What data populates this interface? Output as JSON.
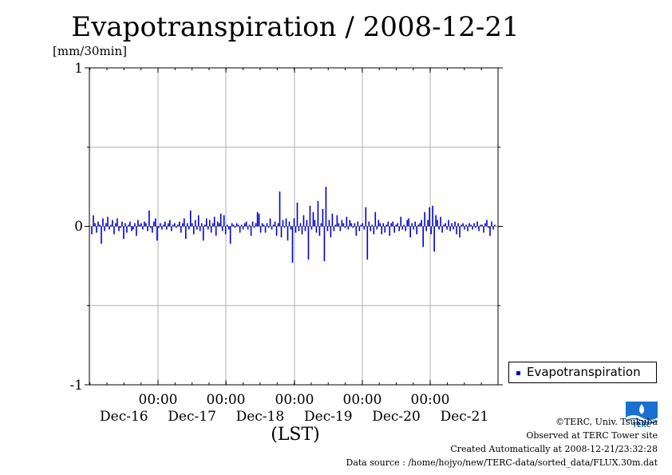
{
  "title": "Evapotranspiration / 2008-12-21",
  "chart_data": {
    "type": "bar",
    "title": "Evapotranspiration / 2008-12-21",
    "ylabel": "[mm/30min]",
    "xlabel": "(LST)",
    "ylim": [
      -1,
      1
    ],
    "yticks": [
      "1",
      "0",
      "-1"
    ],
    "xtick_times": [
      "00:00",
      "00:00",
      "00:00",
      "00:00",
      "00:00"
    ],
    "xtick_dates": [
      "Dec-16",
      "Dec-17",
      "Dec-18",
      "Dec-19",
      "Dec-20",
      "Dec-21"
    ],
    "grid": true,
    "legend_position": "bottom-right, outside plot",
    "series": [
      {
        "name": "Evapotranspiration",
        "color": "#0000cc",
        "values": [
          -0.05,
          0.07,
          0.02,
          -0.04,
          0.03,
          0.01,
          -0.11,
          0.05,
          -0.03,
          0.02,
          0.06,
          -0.02,
          0.01,
          0.04,
          -0.05,
          0.02,
          0.05,
          -0.03,
          -0.01,
          0.03,
          -0.08,
          0.02,
          -0.04,
          0.01,
          0.03,
          -0.03,
          -0.02,
          0.02,
          -0.06,
          0.04,
          0.01,
          0.02,
          -0.02,
          0.03,
          0.02,
          -0.03,
          0.1,
          -0.01,
          -0.04,
          0.03,
          0.05,
          -0.09,
          -0.01,
          0.02,
          -0.02,
          0.01,
          0.03,
          -0.02,
          0.02,
          0.04,
          -0.03,
          0.01,
          0.02,
          -0.01,
          0.01,
          0.03,
          -0.04,
          0.02,
          0.05,
          -0.08,
          0.02,
          -0.02,
          0.1,
          0.02,
          -0.05,
          0.04,
          -0.02,
          0.07,
          -0.03,
          0.02,
          -0.09,
          0.01,
          0.05,
          -0.02,
          0.04,
          -0.04,
          0.02,
          0.06,
          -0.06,
          0.03,
          0.02,
          0.08,
          -0.03,
          0.07,
          -0.05,
          0.01,
          -0.02,
          -0.11,
          0.02,
          0.01,
          -0.01,
          0.02,
          0.01,
          -0.04,
          0.01,
          -0.02,
          0.02,
          0.03,
          -0.02,
          0.01,
          -0.06,
          0.03,
          -0.01,
          0.02,
          0.09,
          0.08,
          -0.04,
          0.02,
          0.01,
          -0.04,
          0.02,
          -0.01,
          0.05,
          -0.02,
          0.01,
          0.03,
          -0.06,
          0.02,
          0.22,
          -0.07,
          0.04,
          -0.01,
          0.05,
          -0.09,
          0.03,
          -0.02,
          -0.23,
          0.05,
          -0.04,
          0.15,
          -0.03,
          0.02,
          -0.05,
          0.07,
          -0.03,
          0.04,
          -0.21,
          0.13,
          -0.02,
          0.09,
          0.04,
          -0.04,
          0.16,
          -0.06,
          0.02,
          0.11,
          -0.22,
          0.25,
          -0.03,
          0.04,
          -0.07,
          0.08,
          -0.03,
          0.01,
          0.07,
          0.02,
          -0.03,
          0.04,
          0.02,
          -0.01,
          0.06,
          -0.02,
          0.04,
          0.02,
          -0.01,
          0.02,
          -0.06,
          0.03,
          -0.03,
          0.01,
          0.02,
          -0.02,
          0.12,
          -0.21,
          0.03,
          -0.03,
          0.01,
          -0.05,
          0.09,
          -0.02,
          0.04,
          0.02,
          -0.05,
          0.02,
          -0.04,
          0.01,
          0.03,
          -0.06,
          0.02,
          0.03,
          -0.04,
          0.01,
          0.02,
          -0.03,
          0.06,
          -0.02,
          0.01,
          -0.03,
          0.04,
          0.05,
          -0.07,
          0.02,
          -0.02,
          0.03,
          -0.05,
          0.01,
          0.02,
          0.04,
          -0.13,
          0.09,
          -0.03,
          0.04,
          0.12,
          -0.05,
          0.13,
          -0.16,
          0.07,
          0.04,
          -0.02,
          0.06,
          -0.04,
          0.01,
          0.02,
          -0.02,
          0.04,
          -0.03,
          0.02,
          -0.02,
          0.03,
          -0.05,
          0.02,
          -0.07,
          0.01,
          0.02,
          -0.02,
          0.01,
          -0.03,
          0.02,
          0.01,
          -0.02,
          0.02,
          -0.01,
          0.03,
          -0.03,
          0.01,
          0.01,
          -0.04,
          0.02,
          0.04,
          -0.01,
          -0.06,
          0.03,
          -0.02,
          0.01
        ]
      }
    ]
  },
  "legend": {
    "label": "Evapotranspiration",
    "color": "#0000cc"
  },
  "logo": {
    "icon": "terc-logo",
    "text": "TERC"
  },
  "credits": {
    "line1": "©TERC, Univ. Tsukuba",
    "line2": "Observed at TERC Tower site",
    "line3": "Created Automatically at 2008-12-21/23:32:28",
    "line4": "Data source : /home/hojyo/new/TERC-data/sorted_data/FLUX.30m.dat"
  }
}
